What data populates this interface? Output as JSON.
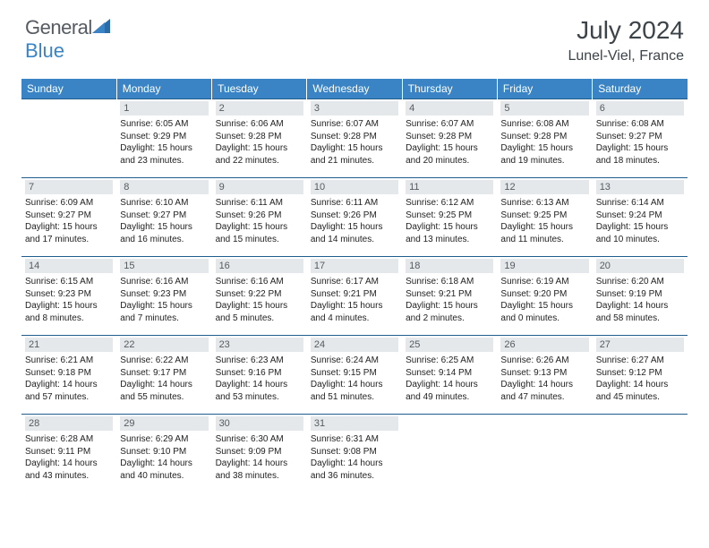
{
  "logo": {
    "text1": "General",
    "text2": "Blue"
  },
  "title": "July 2024",
  "location": "Lunel-Viel, France",
  "colors": {
    "header_bg": "#3a84c5",
    "header_text": "#ffffff",
    "row_divider": "#1f5d8f",
    "daynum_bg": "#e5e8ea",
    "daynum_text": "#555b60",
    "body_text": "#222222",
    "logo_gray": "#555b60",
    "logo_blue": "#3a84c5"
  },
  "weekdays": [
    "Sunday",
    "Monday",
    "Tuesday",
    "Wednesday",
    "Thursday",
    "Friday",
    "Saturday"
  ],
  "weeks": [
    [
      null,
      {
        "n": "1",
        "sr": "Sunrise: 6:05 AM",
        "ss": "Sunset: 9:29 PM",
        "d1": "Daylight: 15 hours",
        "d2": "and 23 minutes."
      },
      {
        "n": "2",
        "sr": "Sunrise: 6:06 AM",
        "ss": "Sunset: 9:28 PM",
        "d1": "Daylight: 15 hours",
        "d2": "and 22 minutes."
      },
      {
        "n": "3",
        "sr": "Sunrise: 6:07 AM",
        "ss": "Sunset: 9:28 PM",
        "d1": "Daylight: 15 hours",
        "d2": "and 21 minutes."
      },
      {
        "n": "4",
        "sr": "Sunrise: 6:07 AM",
        "ss": "Sunset: 9:28 PM",
        "d1": "Daylight: 15 hours",
        "d2": "and 20 minutes."
      },
      {
        "n": "5",
        "sr": "Sunrise: 6:08 AM",
        "ss": "Sunset: 9:28 PM",
        "d1": "Daylight: 15 hours",
        "d2": "and 19 minutes."
      },
      {
        "n": "6",
        "sr": "Sunrise: 6:08 AM",
        "ss": "Sunset: 9:27 PM",
        "d1": "Daylight: 15 hours",
        "d2": "and 18 minutes."
      }
    ],
    [
      {
        "n": "7",
        "sr": "Sunrise: 6:09 AM",
        "ss": "Sunset: 9:27 PM",
        "d1": "Daylight: 15 hours",
        "d2": "and 17 minutes."
      },
      {
        "n": "8",
        "sr": "Sunrise: 6:10 AM",
        "ss": "Sunset: 9:27 PM",
        "d1": "Daylight: 15 hours",
        "d2": "and 16 minutes."
      },
      {
        "n": "9",
        "sr": "Sunrise: 6:11 AM",
        "ss": "Sunset: 9:26 PM",
        "d1": "Daylight: 15 hours",
        "d2": "and 15 minutes."
      },
      {
        "n": "10",
        "sr": "Sunrise: 6:11 AM",
        "ss": "Sunset: 9:26 PM",
        "d1": "Daylight: 15 hours",
        "d2": "and 14 minutes."
      },
      {
        "n": "11",
        "sr": "Sunrise: 6:12 AM",
        "ss": "Sunset: 9:25 PM",
        "d1": "Daylight: 15 hours",
        "d2": "and 13 minutes."
      },
      {
        "n": "12",
        "sr": "Sunrise: 6:13 AM",
        "ss": "Sunset: 9:25 PM",
        "d1": "Daylight: 15 hours",
        "d2": "and 11 minutes."
      },
      {
        "n": "13",
        "sr": "Sunrise: 6:14 AM",
        "ss": "Sunset: 9:24 PM",
        "d1": "Daylight: 15 hours",
        "d2": "and 10 minutes."
      }
    ],
    [
      {
        "n": "14",
        "sr": "Sunrise: 6:15 AM",
        "ss": "Sunset: 9:23 PM",
        "d1": "Daylight: 15 hours",
        "d2": "and 8 minutes."
      },
      {
        "n": "15",
        "sr": "Sunrise: 6:16 AM",
        "ss": "Sunset: 9:23 PM",
        "d1": "Daylight: 15 hours",
        "d2": "and 7 minutes."
      },
      {
        "n": "16",
        "sr": "Sunrise: 6:16 AM",
        "ss": "Sunset: 9:22 PM",
        "d1": "Daylight: 15 hours",
        "d2": "and 5 minutes."
      },
      {
        "n": "17",
        "sr": "Sunrise: 6:17 AM",
        "ss": "Sunset: 9:21 PM",
        "d1": "Daylight: 15 hours",
        "d2": "and 4 minutes."
      },
      {
        "n": "18",
        "sr": "Sunrise: 6:18 AM",
        "ss": "Sunset: 9:21 PM",
        "d1": "Daylight: 15 hours",
        "d2": "and 2 minutes."
      },
      {
        "n": "19",
        "sr": "Sunrise: 6:19 AM",
        "ss": "Sunset: 9:20 PM",
        "d1": "Daylight: 15 hours",
        "d2": "and 0 minutes."
      },
      {
        "n": "20",
        "sr": "Sunrise: 6:20 AM",
        "ss": "Sunset: 9:19 PM",
        "d1": "Daylight: 14 hours",
        "d2": "and 58 minutes."
      }
    ],
    [
      {
        "n": "21",
        "sr": "Sunrise: 6:21 AM",
        "ss": "Sunset: 9:18 PM",
        "d1": "Daylight: 14 hours",
        "d2": "and 57 minutes."
      },
      {
        "n": "22",
        "sr": "Sunrise: 6:22 AM",
        "ss": "Sunset: 9:17 PM",
        "d1": "Daylight: 14 hours",
        "d2": "and 55 minutes."
      },
      {
        "n": "23",
        "sr": "Sunrise: 6:23 AM",
        "ss": "Sunset: 9:16 PM",
        "d1": "Daylight: 14 hours",
        "d2": "and 53 minutes."
      },
      {
        "n": "24",
        "sr": "Sunrise: 6:24 AM",
        "ss": "Sunset: 9:15 PM",
        "d1": "Daylight: 14 hours",
        "d2": "and 51 minutes."
      },
      {
        "n": "25",
        "sr": "Sunrise: 6:25 AM",
        "ss": "Sunset: 9:14 PM",
        "d1": "Daylight: 14 hours",
        "d2": "and 49 minutes."
      },
      {
        "n": "26",
        "sr": "Sunrise: 6:26 AM",
        "ss": "Sunset: 9:13 PM",
        "d1": "Daylight: 14 hours",
        "d2": "and 47 minutes."
      },
      {
        "n": "27",
        "sr": "Sunrise: 6:27 AM",
        "ss": "Sunset: 9:12 PM",
        "d1": "Daylight: 14 hours",
        "d2": "and 45 minutes."
      }
    ],
    [
      {
        "n": "28",
        "sr": "Sunrise: 6:28 AM",
        "ss": "Sunset: 9:11 PM",
        "d1": "Daylight: 14 hours",
        "d2": "and 43 minutes."
      },
      {
        "n": "29",
        "sr": "Sunrise: 6:29 AM",
        "ss": "Sunset: 9:10 PM",
        "d1": "Daylight: 14 hours",
        "d2": "and 40 minutes."
      },
      {
        "n": "30",
        "sr": "Sunrise: 6:30 AM",
        "ss": "Sunset: 9:09 PM",
        "d1": "Daylight: 14 hours",
        "d2": "and 38 minutes."
      },
      {
        "n": "31",
        "sr": "Sunrise: 6:31 AM",
        "ss": "Sunset: 9:08 PM",
        "d1": "Daylight: 14 hours",
        "d2": "and 36 minutes."
      },
      null,
      null,
      null
    ]
  ]
}
